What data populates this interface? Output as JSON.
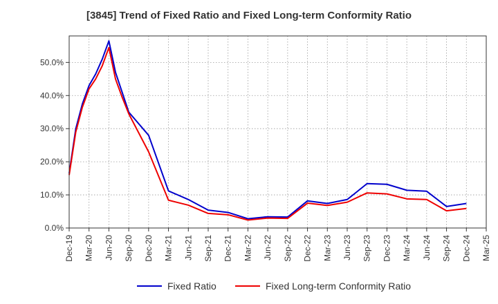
{
  "chart_data": {
    "type": "line",
    "title": "[3845]  Trend of Fixed Ratio and Fixed Long-term Conformity Ratio",
    "xlabel": "",
    "ylabel": "",
    "x_tick_labels": [
      "Dec-19",
      "Mar-20",
      "Jun-20",
      "Sep-20",
      "Dec-20",
      "Mar-21",
      "Jun-21",
      "Sep-21",
      "Dec-21",
      "Mar-22",
      "Jun-22",
      "Sep-22",
      "Dec-22",
      "Mar-23",
      "Jun-23",
      "Sep-23",
      "Dec-23",
      "Mar-24",
      "Jun-24",
      "Sep-24",
      "Dec-24",
      "Mar-25"
    ],
    "y_tick_labels": [
      "0.0%",
      "10.0%",
      "20.0%",
      "30.0%",
      "40.0%",
      "50.0%"
    ],
    "ylim": [
      0,
      58
    ],
    "grid": true,
    "legend_position": "bottom",
    "series": [
      {
        "name": "Fixed Ratio",
        "color": "#0000cc",
        "points": [
          [
            "Dec-19",
            16.5
          ],
          [
            "Jan-20",
            30
          ],
          [
            "Feb-20",
            37.5
          ],
          [
            "Mar-20",
            43
          ],
          [
            "Apr-20",
            46.5
          ],
          [
            "May-20",
            51
          ],
          [
            "Jun-20",
            56.5
          ],
          [
            "Jul-20",
            47
          ],
          [
            "Aug-20",
            41
          ],
          [
            "Sep-20",
            35
          ],
          [
            "Dec-20",
            28
          ],
          [
            "Mar-21",
            11.2
          ],
          [
            "Jun-21",
            8.6
          ],
          [
            "Sep-21",
            5.4
          ],
          [
            "Dec-21",
            4.7
          ],
          [
            "Mar-22",
            2.8
          ],
          [
            "Jun-22",
            3.4
          ],
          [
            "Sep-22",
            3.3
          ],
          [
            "Dec-22",
            8.2
          ],
          [
            "Mar-23",
            7.4
          ],
          [
            "Jun-23",
            8.6
          ],
          [
            "Sep-23",
            13.4
          ],
          [
            "Dec-23",
            13.2
          ],
          [
            "Mar-24",
            11.4
          ],
          [
            "Jun-24",
            11.1
          ],
          [
            "Sep-24",
            6.5
          ],
          [
            "Dec-24",
            7.4
          ]
        ]
      },
      {
        "name": "Fixed Long-term Conformity Ratio",
        "color": "#ee0000",
        "points": [
          [
            "Dec-19",
            16
          ],
          [
            "Jan-20",
            29
          ],
          [
            "Feb-20",
            36.5
          ],
          [
            "Mar-20",
            42
          ],
          [
            "Apr-20",
            45
          ],
          [
            "May-20",
            49
          ],
          [
            "Jun-20",
            54.5
          ],
          [
            "Jul-20",
            45
          ],
          [
            "Aug-20",
            39.5
          ],
          [
            "Sep-20",
            34.5
          ],
          [
            "Dec-20",
            23
          ],
          [
            "Mar-21",
            8.4
          ],
          [
            "Jun-21",
            6.9
          ],
          [
            "Sep-21",
            4.4
          ],
          [
            "Dec-21",
            4.0
          ],
          [
            "Mar-22",
            2.4
          ],
          [
            "Jun-22",
            3.0
          ],
          [
            "Sep-22",
            2.9
          ],
          [
            "Dec-22",
            7.5
          ],
          [
            "Mar-23",
            6.8
          ],
          [
            "Jun-23",
            7.8
          ],
          [
            "Sep-23",
            10.6
          ],
          [
            "Dec-23",
            10.3
          ],
          [
            "Mar-24",
            8.8
          ],
          [
            "Jun-24",
            8.6
          ],
          [
            "Sep-24",
            5.2
          ],
          [
            "Dec-24",
            5.9
          ]
        ]
      }
    ]
  }
}
